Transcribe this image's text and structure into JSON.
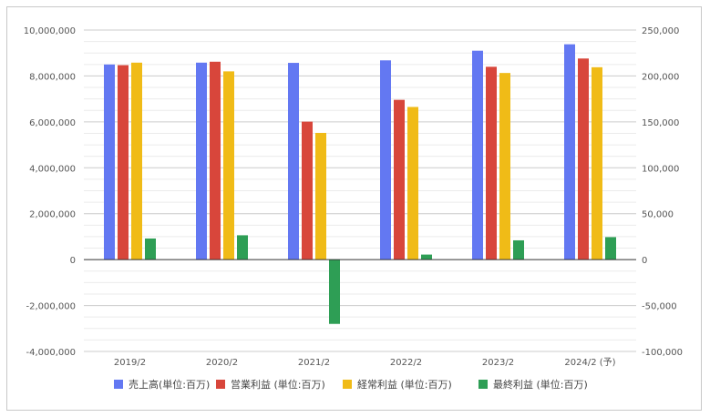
{
  "colors": {
    "sales": "#6378f2",
    "operating": "#d8463b",
    "ordinary": "#f0bb17",
    "net": "#2e9e55",
    "grid": "#d9d9d9",
    "axis": "#333333"
  },
  "chart_data": {
    "type": "bar",
    "categories": [
      "2019/2",
      "2020/2",
      "2021/2",
      "2022/2",
      "2023/2",
      "2024/2 (予)"
    ],
    "series": [
      {
        "name": "売上高(単位:百万)",
        "axis": "left",
        "values": [
          8500000,
          8580000,
          8570000,
          8680000,
          9100000,
          9380000
        ]
      },
      {
        "name": "営業利益 (単位:百万)",
        "axis": "left",
        "values": [
          8470000,
          8620000,
          6010000,
          6960000,
          8400000,
          8760000
        ]
      },
      {
        "name": "経常利益 (単位:百万)",
        "axis": "left",
        "values": [
          8580000,
          8200000,
          5520000,
          6650000,
          8130000,
          8380000
        ]
      },
      {
        "name": "最終利益 (単位:百万)",
        "axis": "right",
        "values": [
          23000,
          26500,
          -70000,
          5500,
          21000,
          24500
        ]
      }
    ],
    "left_axis": {
      "min": -4000000,
      "max": 10000000,
      "ticks": [
        "-4,000,000",
        "-2,000,000",
        "0",
        "2,000,000",
        "4,000,000",
        "6,000,000",
        "8,000,000",
        "10,000,000"
      ]
    },
    "right_axis": {
      "min": -100000,
      "max": 250000,
      "ticks": [
        "-100,000",
        "-50,000",
        "0",
        "50,000",
        "100,000",
        "150,000",
        "200,000",
        "250,000"
      ]
    },
    "grid": true,
    "legend_position": "bottom"
  }
}
